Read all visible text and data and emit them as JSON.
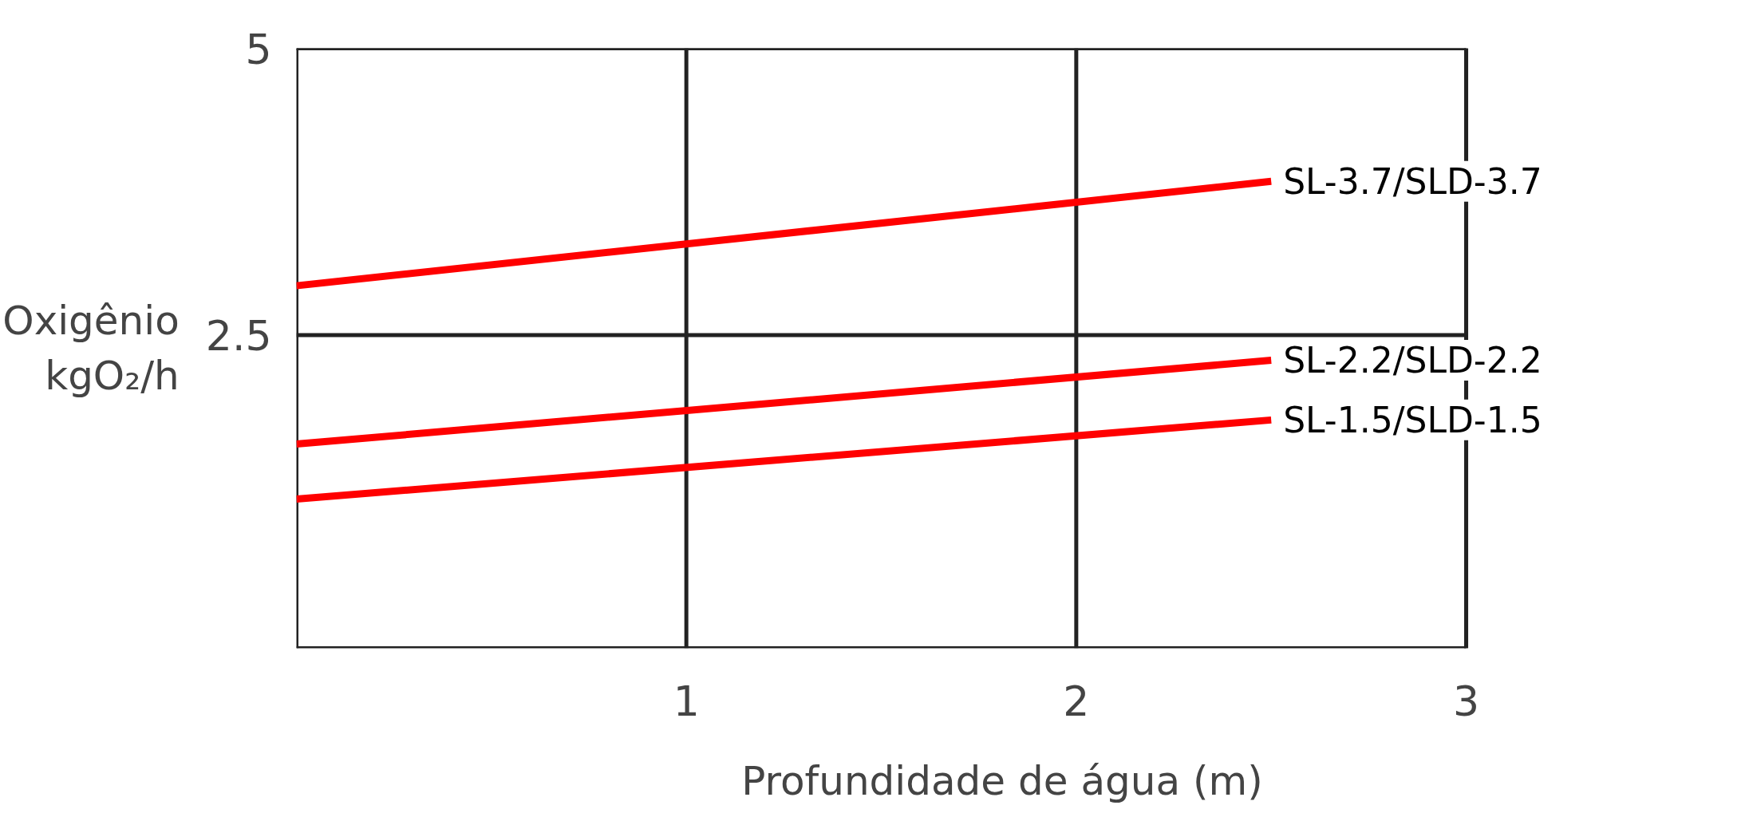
{
  "chart_data": {
    "type": "line",
    "xlabel": "Profundidade de água (m)",
    "ylabel": "Oxigênio\nkgO₂/h",
    "xlim": [
      0,
      3
    ],
    "xticks": [
      1,
      2,
      3
    ],
    "ylim": [
      -0.23,
      5
    ],
    "yticks": [
      2.5,
      5
    ],
    "grid": true,
    "legend": false,
    "marker": "none",
    "line_style": "solid",
    "x": [
      0,
      2.5
    ],
    "series": [
      {
        "name": "SL-3.7/SLD-3.7",
        "color": "#ff0000",
        "values": [
          2.93,
          3.84
        ]
      },
      {
        "name": "SL-2.2/SLD-2.2",
        "color": "#ff0000",
        "values": [
          1.55,
          2.28
        ]
      },
      {
        "name": "SL-1.5/SLD-1.5",
        "color": "#ff0000",
        "values": [
          1.07,
          1.76
        ]
      }
    ]
  }
}
